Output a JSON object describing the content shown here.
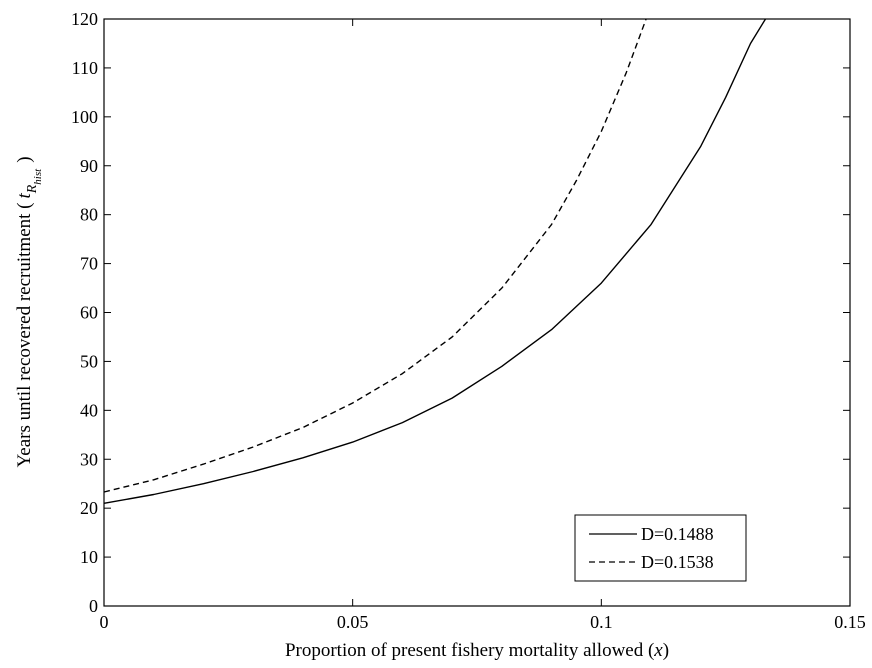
{
  "chart_data": {
    "type": "line",
    "xlabel": "Proportion of present fishery mortality allowed (",
    "xlabel_var": "x",
    "xlabel_close": ")",
    "ylabel": "Years until recovered recruitment (",
    "ylabel_t": "t",
    "ylabel_R": "R",
    "ylabel_sub": "hist",
    "ylabel_close": ")",
    "xlim": [
      0,
      0.15
    ],
    "ylim": [
      0,
      120
    ],
    "xticks": [
      0,
      0.05,
      0.1,
      0.15
    ],
    "xtick_labels": [
      "0",
      "0.05",
      "0.1",
      "0.15"
    ],
    "yticks": [
      0,
      10,
      20,
      30,
      40,
      50,
      60,
      70,
      80,
      90,
      100,
      110,
      120
    ],
    "ytick_labels": [
      "0",
      "10",
      "20",
      "30",
      "40",
      "50",
      "60",
      "70",
      "80",
      "90",
      "100",
      "110",
      "120"
    ],
    "grid": false,
    "legend_position": "bottom-right",
    "series": [
      {
        "name": "D=0.1488",
        "line_style": "solid",
        "color": "#000000",
        "x": [
          0,
          0.01,
          0.02,
          0.03,
          0.04,
          0.05,
          0.06,
          0.07,
          0.08,
          0.09,
          0.1,
          0.11,
          0.12,
          0.125,
          0.13,
          0.133
        ],
        "y": [
          21,
          22.8,
          25,
          27.5,
          30.3,
          33.5,
          37.5,
          42.5,
          49,
          56.5,
          66,
          78,
          94,
          104,
          115,
          120
        ]
      },
      {
        "name": "D=0.1538",
        "line_style": "dashed",
        "color": "#000000",
        "x": [
          0,
          0.01,
          0.02,
          0.03,
          0.04,
          0.05,
          0.06,
          0.07,
          0.08,
          0.09,
          0.095,
          0.1,
          0.105,
          0.109
        ],
        "y": [
          23.3,
          25.8,
          29,
          32.5,
          36.5,
          41.5,
          47.5,
          55,
          65,
          78,
          87,
          97,
          109,
          120
        ]
      }
    ]
  }
}
